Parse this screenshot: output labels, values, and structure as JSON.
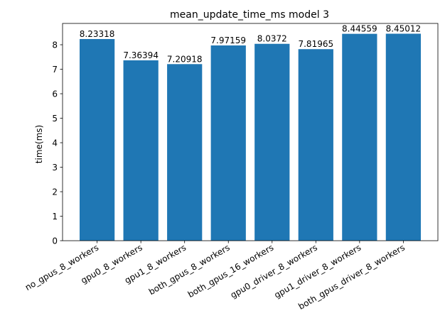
{
  "chart_data": {
    "type": "bar",
    "title": "mean_update_time_ms model 3",
    "xlabel": "",
    "ylabel": "time(ms)",
    "categories": [
      "no_gpus_8_workers",
      "gpu0_8_workers",
      "gpu1_8_workers",
      "both_gpus_8_workers",
      "both_gpus_16_workers",
      "gpu0_driver_8_workers",
      "gpu1_driver_8_workers",
      "both_gpus_driver_8_workers"
    ],
    "values": [
      8.23318,
      7.36394,
      7.20918,
      7.97159,
      8.0372,
      7.81965,
      8.44559,
      8.45012
    ],
    "data_labels": [
      "8.23318",
      "7.36394",
      "7.20918",
      "7.97159",
      "8.0372",
      "7.81965",
      "8.44559",
      "8.45012"
    ],
    "ylim": [
      0,
      8.87
    ],
    "yticks": [
      0,
      1,
      2,
      3,
      4,
      5,
      6,
      7,
      8
    ],
    "bar_color": "#1f77b4",
    "grid": false,
    "legend": "none"
  }
}
